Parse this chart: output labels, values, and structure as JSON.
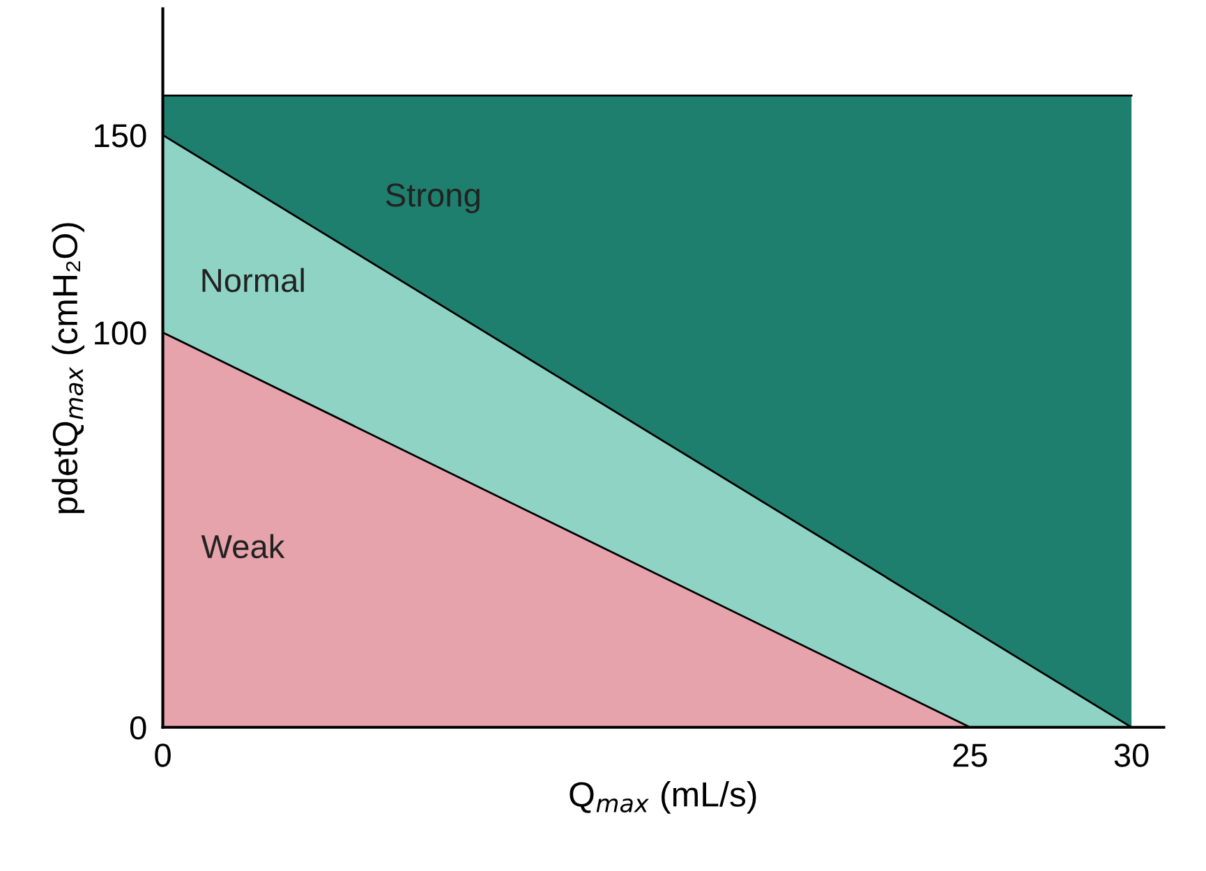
{
  "chart_data": {
    "type": "area",
    "stacked": true,
    "xlabel": "Q$_{max}$ (mL/s)",
    "ylabel": "pdetQ$_{max}$ (cmH₂O)",
    "x": [
      0,
      25,
      30
    ],
    "series": [
      {
        "name": "Weak",
        "color": "#e6a3ab",
        "values": [
          100,
          0,
          0
        ]
      },
      {
        "name": "Normal",
        "color": "#8fd3c4",
        "values": [
          50,
          25,
          0
        ]
      },
      {
        "name": "Strong",
        "color": "#1f7f6e",
        "values": [
          10,
          135,
          160
        ]
      }
    ],
    "xlim": [
      0,
      31
    ],
    "ylim": [
      0,
      182
    ],
    "xticks": [
      0,
      25,
      30
    ],
    "yticks": [
      0,
      100,
      150
    ],
    "grid": false,
    "legend": false
  }
}
